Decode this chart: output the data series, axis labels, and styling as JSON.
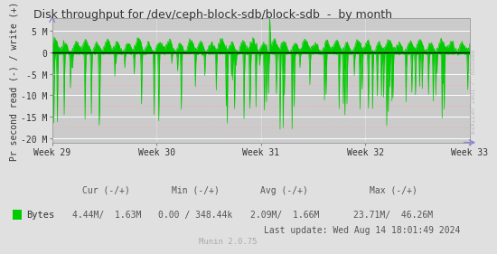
{
  "title": "Disk throughput for /dev/ceph-block-sdb/block-sdb  -  by month",
  "ylabel": "Pr second read (-) / write (+)",
  "bg_color": "#e0e0e0",
  "plot_bg_color": "#cbcbcb",
  "grid_color": "#ffffff",
  "line_color": "#00cc00",
  "zero_line_color": "#000000",
  "ylim": [
    -21000000,
    8000000
  ],
  "yticks": [
    -20000000,
    -15000000,
    -10000000,
    -5000000,
    0,
    5000000
  ],
  "ytick_labels": [
    "-20 M",
    "-15 M",
    "-10 M",
    "-5 M",
    "0",
    "5 M"
  ],
  "week_labels": [
    "Week 29",
    "Week 30",
    "Week 31",
    "Week 32",
    "Week 33"
  ],
  "legend_label": "Bytes",
  "legend_color": "#00cc00",
  "cur_neg": "4.44M",
  "cur_pos": "1.63M",
  "min_neg": "0.00",
  "min_pos": "348.44k",
  "avg_neg": "2.09M",
  "avg_pos": "1.66M",
  "max_neg": "23.71M",
  "max_pos": "46.26M",
  "last_update": "Last update: Wed Aug 14 18:01:49 2024",
  "munin_version": "Munin 2.0.75",
  "rrdtool_text": "RRDTOOL / TOBI OETIKER",
  "title_color": "#333333",
  "text_color": "#333333",
  "stats_color": "#555555",
  "red_grid_color": "#ffaaaa",
  "arrow_color": "#8888cc"
}
